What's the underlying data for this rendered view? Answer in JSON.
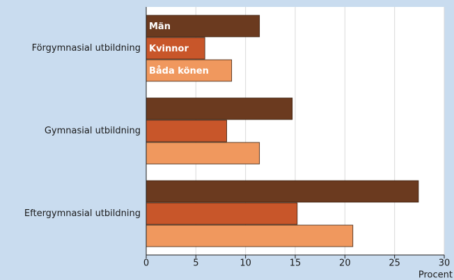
{
  "chart_data": {
    "type": "bar",
    "orientation": "horizontal",
    "categories": [
      "Förgymnasial utbildning",
      "Gymnasial utbildning",
      "Eftergymnasial utbildning"
    ],
    "series": [
      {
        "name": "Män",
        "color": "#6b3a1f",
        "values": [
          11.4,
          14.7,
          27.4
        ]
      },
      {
        "name": "Kvinnor",
        "color": "#c8562a",
        "values": [
          5.9,
          8.1,
          15.2
        ]
      },
      {
        "name": "Båda könen",
        "color": "#f0985e",
        "values": [
          8.6,
          11.4,
          20.8
        ]
      }
    ],
    "xlabel": "Procent",
    "xlim": [
      0,
      30
    ],
    "xticks": [
      0,
      5,
      10,
      15,
      20,
      25,
      30
    ],
    "grid": true,
    "legend": "inside-bars"
  }
}
